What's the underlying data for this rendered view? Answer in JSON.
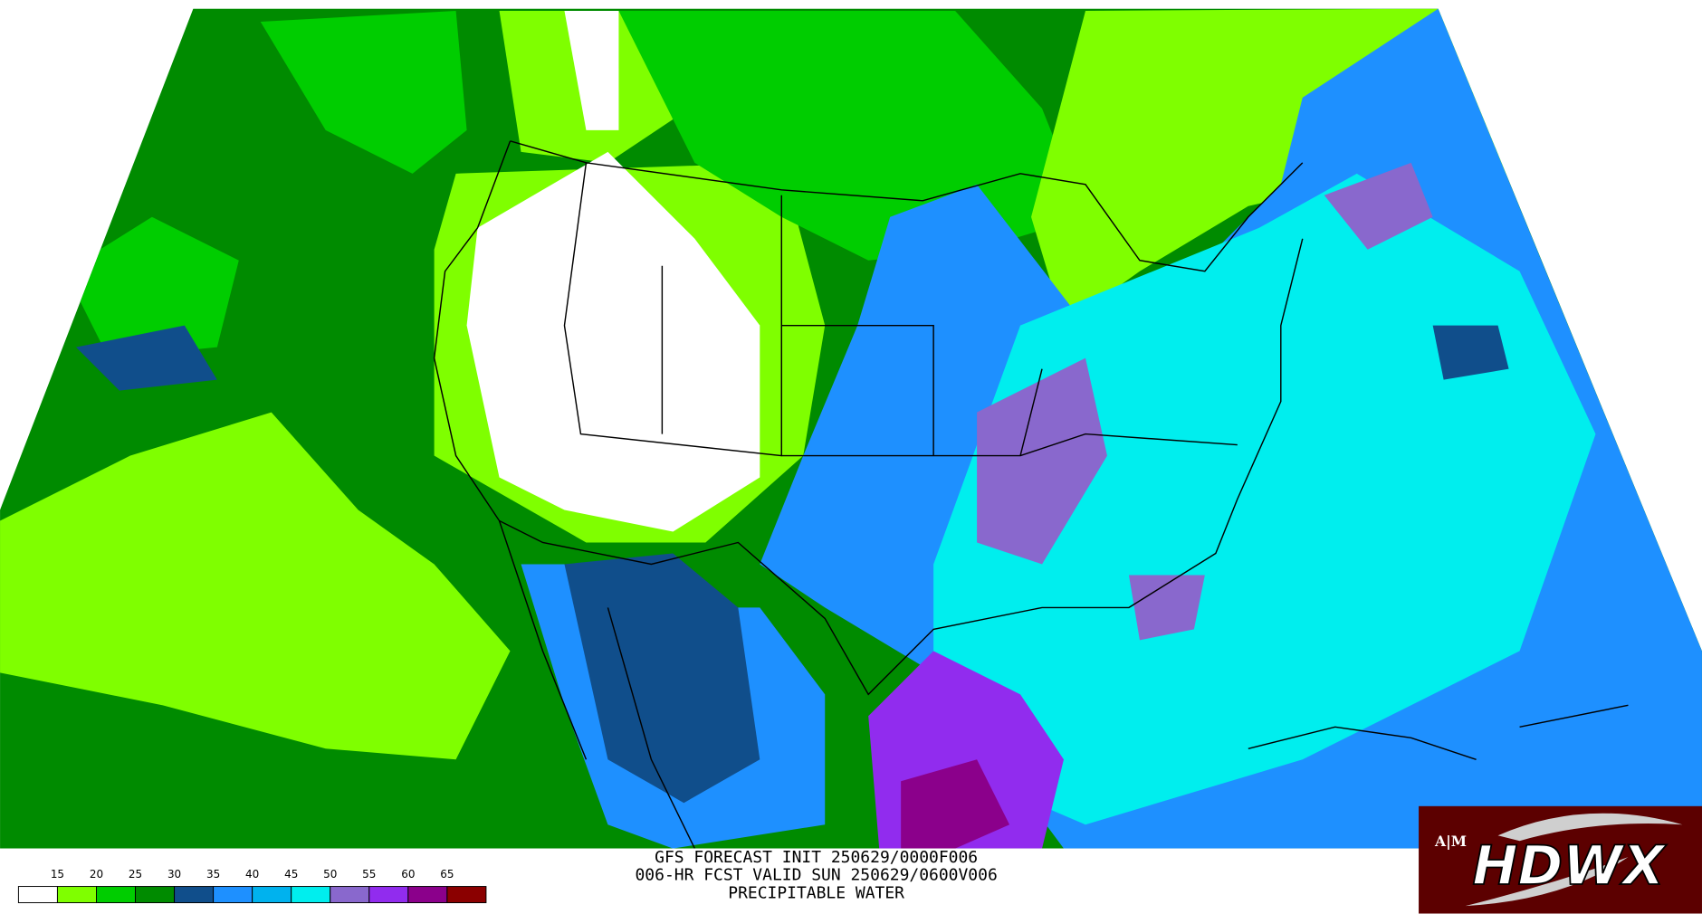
{
  "header": {
    "lines": [
      "GFS FORECAST INIT 250629/0000F006",
      "006-HR FCST VALID SUN 250629/0600V006",
      "PRECIPITABLE WATER"
    ]
  },
  "legend": {
    "labels": [
      15,
      20,
      25,
      30,
      35,
      40,
      45,
      50,
      55,
      60,
      65
    ],
    "colors": [
      "#ffffff",
      "#7fff00",
      "#00cd00",
      "#008b00",
      "#104e8b",
      "#1e90ff",
      "#00b2ee",
      "#00eeee",
      "#8968cd",
      "#912cee",
      "#8b008b",
      "#8b0000"
    ]
  },
  "logo": {
    "text": "HDWX",
    "badge": "A|M"
  }
}
